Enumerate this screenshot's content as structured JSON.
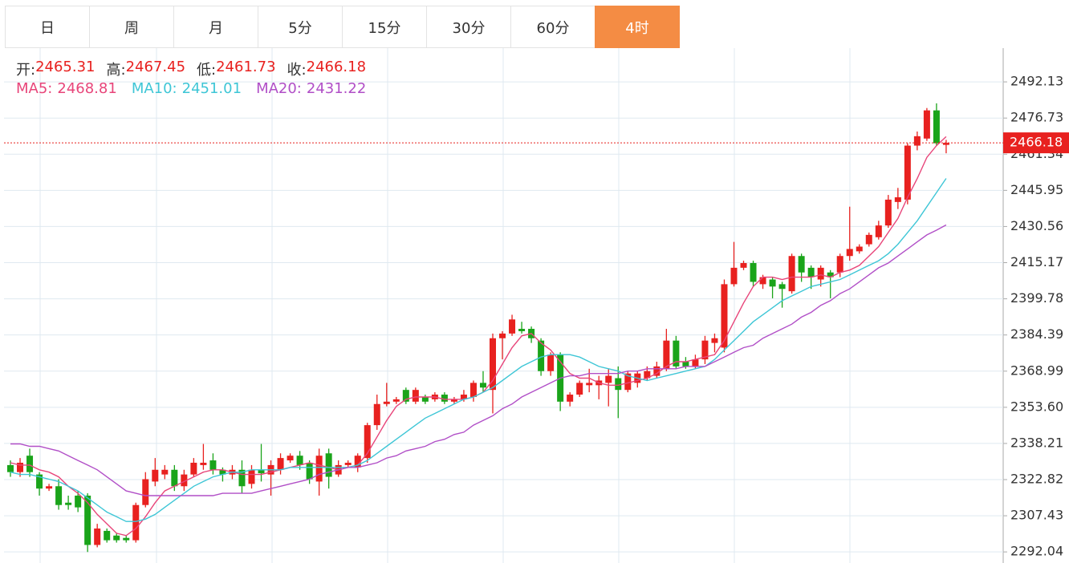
{
  "tabs": [
    {
      "label": "日",
      "active": false
    },
    {
      "label": "周",
      "active": false
    },
    {
      "label": "月",
      "active": false
    },
    {
      "label": "5分",
      "active": false
    },
    {
      "label": "15分",
      "active": false
    },
    {
      "label": "30分",
      "active": false
    },
    {
      "label": "60分",
      "active": false
    },
    {
      "label": "4时",
      "active": true
    }
  ],
  "chart_data": {
    "type": "candlestick",
    "ohlc_legend": [
      {
        "label": "开:",
        "value": 2465.31
      },
      {
        "label": "高:",
        "value": 2467.45
      },
      {
        "label": "低:",
        "value": 2461.73
      },
      {
        "label": "收:",
        "value": 2466.18
      }
    ],
    "up_color": "#e8211f",
    "down_color": "#1aa41a",
    "candles": {
      "open": [
        2329,
        2326,
        2333,
        2325,
        2319,
        2320,
        2313,
        2316,
        2316,
        2295,
        2301,
        2299,
        2298,
        2297,
        2312,
        2322,
        2325,
        2327,
        2320,
        2325,
        2329,
        2331,
        2327,
        2325,
        2327,
        2321,
        2327,
        2325,
        2327,
        2331,
        2333,
        2330,
        2322,
        2334,
        2325,
        2329,
        2328,
        2332,
        2346,
        2355,
        2356,
        2361,
        2356,
        2358,
        2357,
        2359,
        2356,
        2357,
        2358,
        2364,
        2361,
        2383,
        2385,
        2387,
        2387,
        2382,
        2369,
        2376,
        2356,
        2359,
        2363,
        2363,
        2364,
        2366,
        2361,
        2364,
        2366,
        2367,
        2370,
        2382,
        2373,
        2371,
        2374,
        2381,
        2379,
        2406,
        2413,
        2415,
        2406,
        2408,
        2406,
        2403,
        2418,
        2413,
        2408,
        2411,
        2411,
        2418,
        2420,
        2423,
        2426,
        2431,
        2441,
        2442,
        2465,
        2468,
        2480,
        2465.31
      ],
      "high": [
        2331,
        2332,
        2336,
        2326,
        2321,
        2323,
        2316,
        2318,
        2317,
        2304,
        2302,
        2300,
        2299,
        2313,
        2326,
        2332,
        2329,
        2329,
        2327,
        2332,
        2338,
        2334,
        2328,
        2329,
        2331,
        2329,
        2338,
        2331,
        2334,
        2334,
        2335,
        2331,
        2336,
        2336,
        2331,
        2331,
        2334,
        2347,
        2359,
        2364,
        2358,
        2362,
        2362,
        2359,
        2360,
        2360,
        2358,
        2361,
        2365,
        2369,
        2385,
        2386,
        2393,
        2390,
        2388,
        2383,
        2377,
        2377,
        2360,
        2365,
        2370,
        2367,
        2370,
        2371,
        2369,
        2369,
        2371,
        2373,
        2387,
        2384,
        2375,
        2376,
        2384,
        2385,
        2408,
        2424,
        2416,
        2416,
        2410,
        2409,
        2407,
        2419,
        2419,
        2414,
        2414,
        2412,
        2419,
        2439,
        2423,
        2428,
        2433,
        2444,
        2447,
        2466,
        2471,
        2481,
        2483,
        2467.45
      ],
      "low": [
        2324,
        2324,
        2324,
        2316,
        2318,
        2310,
        2310,
        2309,
        2292,
        2294,
        2296,
        2296,
        2296,
        2296,
        2311,
        2320,
        2323,
        2318,
        2318,
        2324,
        2327,
        2325,
        2322,
        2323,
        2317,
        2319,
        2322,
        2316,
        2325,
        2330,
        2327,
        2321,
        2316,
        2319,
        2324,
        2328,
        2326,
        2330,
        2344,
        2354,
        2355,
        2355,
        2355,
        2355,
        2356,
        2355,
        2355,
        2356,
        2356,
        2360,
        2351,
        2374,
        2384,
        2385,
        2381,
        2367,
        2367,
        2352,
        2354,
        2358,
        2360,
        2357,
        2354,
        2349,
        2360,
        2362,
        2365,
        2366,
        2369,
        2370,
        2370,
        2370,
        2372,
        2377,
        2377,
        2405,
        2412,
        2405,
        2404,
        2400,
        2396,
        2402,
        2407,
        2404,
        2405,
        2400,
        2409,
        2416,
        2419,
        2422,
        2425,
        2430,
        2438,
        2440,
        2463,
        2467,
        2465,
        2461.73
      ],
      "close": [
        2326,
        2330,
        2326,
        2319,
        2320,
        2312,
        2312,
        2311,
        2295,
        2302,
        2297,
        2297,
        2297,
        2312,
        2323,
        2327,
        2327,
        2320,
        2325,
        2330,
        2330,
        2327,
        2325,
        2327,
        2320,
        2327,
        2325.5,
        2329,
        2332,
        2333,
        2329,
        2323,
        2333,
        2324,
        2329,
        2330,
        2333,
        2346,
        2355,
        2356,
        2357,
        2356,
        2361,
        2356,
        2359,
        2356,
        2357,
        2359,
        2364,
        2362,
        2383,
        2385,
        2391,
        2386,
        2383,
        2369,
        2376,
        2356,
        2359,
        2364,
        2364,
        2365,
        2367,
        2361,
        2368,
        2368,
        2369,
        2371,
        2382,
        2371,
        2371,
        2374,
        2382,
        2383,
        2406,
        2413,
        2415,
        2407,
        2409,
        2405,
        2404,
        2418,
        2411,
        2409,
        2413,
        2409,
        2418,
        2421,
        2422,
        2427,
        2431,
        2442,
        2443,
        2465,
        2469,
        2480,
        2466,
        2466.18
      ]
    },
    "series": [
      {
        "name": "MA5:",
        "color": "#e8457a",
        "value": 2468.81,
        "values": [
          2330,
          2329,
          2329,
          2327,
          2326,
          2324,
          2320,
          2317,
          2313,
          2308,
          2304,
          2300,
          2299,
          2302,
          2307,
          2313,
          2318,
          2320,
          2322,
          2324,
          2326,
          2327,
          2327,
          2326,
          2325,
          2325,
          2325,
          2326,
          2327,
          2328,
          2329,
          2330,
          2329,
          2328,
          2327,
          2328,
          2329,
          2334,
          2341,
          2348,
          2354,
          2357,
          2358,
          2358,
          2358,
          2357,
          2357,
          2357,
          2358,
          2360,
          2365,
          2372,
          2379,
          2384,
          2385,
          2381,
          2378,
          2373,
          2368,
          2366,
          2366,
          2364,
          2363,
          2363,
          2364,
          2365,
          2366,
          2368,
          2371,
          2373,
          2373,
          2374,
          2375,
          2376,
          2382,
          2390,
          2398,
          2405,
          2409,
          2409,
          2408,
          2409,
          2409,
          2409,
          2410,
          2409,
          2411,
          2412,
          2414,
          2418,
          2422,
          2428,
          2434,
          2443,
          2451,
          2460,
          2465,
          2468.81
        ]
      },
      {
        "name": "MA10:",
        "color": "#3ec6d6",
        "value": 2451.01,
        "values": [
          2326,
          2325,
          2325,
          2324,
          2323,
          2322,
          2320,
          2318,
          2315,
          2312,
          2309,
          2307,
          2305,
          2305,
          2306,
          2308,
          2311,
          2314,
          2317,
          2320,
          2322,
          2324,
          2325,
          2326,
          2326,
          2327,
          2327,
          2327,
          2327,
          2328,
          2328,
          2328,
          2328,
          2328,
          2328,
          2328,
          2329,
          2331,
          2334,
          2337,
          2340,
          2343,
          2346,
          2349,
          2351,
          2353,
          2355,
          2357,
          2358,
          2360,
          2362,
          2365,
          2368,
          2371,
          2373,
          2375,
          2376,
          2376,
          2376,
          2375,
          2373,
          2371,
          2370,
          2369,
          2367,
          2366,
          2365,
          2366,
          2367,
          2368,
          2369,
          2370,
          2371,
          2374,
          2378,
          2382,
          2386,
          2390,
          2393,
          2396,
          2399,
          2401,
          2403,
          2405,
          2406,
          2407,
          2408,
          2410,
          2412,
          2414,
          2416,
          2419,
          2423,
          2428,
          2433,
          2439,
          2445,
          2451.01
        ]
      },
      {
        "name": "MA20:",
        "color": "#b14fc7",
        "value": 2431.22,
        "values": [
          2338,
          2338,
          2337,
          2337,
          2336,
          2335,
          2333,
          2331,
          2329,
          2327,
          2324,
          2321,
          2318,
          2317,
          2316,
          2316,
          2316,
          2316,
          2316,
          2316,
          2316,
          2316,
          2317,
          2317,
          2317,
          2317,
          2318,
          2319,
          2320,
          2321,
          2322,
          2323,
          2325,
          2326,
          2327,
          2328,
          2328,
          2329,
          2330,
          2332,
          2333,
          2335,
          2336,
          2337,
          2339,
          2340,
          2342,
          2343,
          2346,
          2348,
          2350,
          2353,
          2355,
          2358,
          2360,
          2362,
          2364,
          2366,
          2367,
          2367,
          2368,
          2368,
          2368,
          2368,
          2369,
          2369,
          2370,
          2370,
          2370,
          2370,
          2371,
          2371,
          2371,
          2373,
          2375,
          2377,
          2379,
          2380,
          2383,
          2385,
          2387,
          2389,
          2392,
          2394,
          2397,
          2399,
          2402,
          2404,
          2407,
          2410,
          2413,
          2415,
          2418,
          2421,
          2424,
          2427,
          2429,
          2431.22
        ]
      }
    ],
    "last_price": {
      "value": 2466.18,
      "color": "#e8211f"
    },
    "ylim": [
      2288,
      2506.5
    ],
    "yticks": [
      2292.04,
      2307.43,
      2322.82,
      2338.21,
      {
        "value": 2353.6,
        "label": "2353.60"
      },
      2368.99,
      2384.39,
      2399.78,
      2415.17,
      2430.56,
      2445.95,
      2461.34,
      2476.73,
      2492.13
    ],
    "grid": true
  }
}
